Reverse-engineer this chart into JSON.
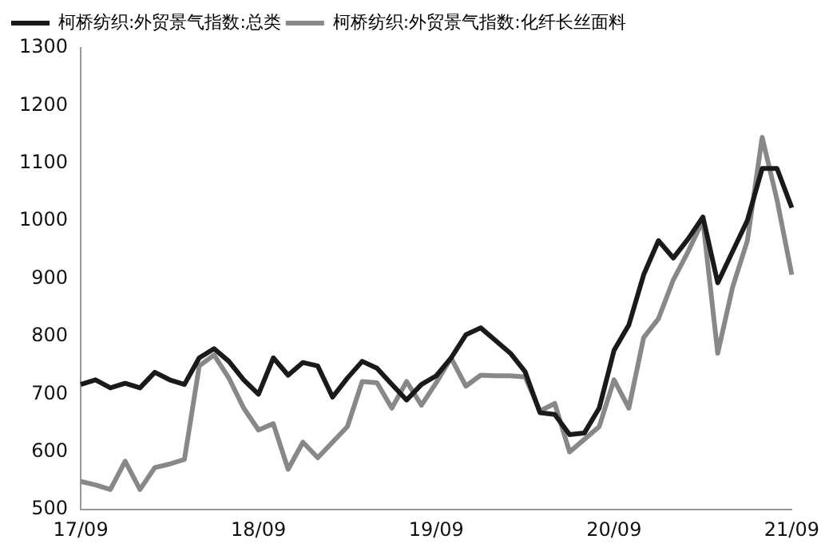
{
  "chart_data": {
    "type": "line",
    "categories": [
      "17/09",
      null,
      null,
      null,
      null,
      null,
      null,
      null,
      null,
      null,
      null,
      null,
      "18/09",
      null,
      null,
      null,
      null,
      null,
      null,
      null,
      null,
      null,
      null,
      null,
      "19/09",
      null,
      null,
      null,
      null,
      null,
      null,
      null,
      null,
      null,
      null,
      null,
      "20/09",
      null,
      null,
      null,
      null,
      null,
      null,
      null,
      null,
      null,
      null,
      null,
      "21/09"
    ],
    "series": [
      {
        "name": "柯桥纺织:外贸景气指数:总类",
        "color": "#1a1a1a",
        "values": [
          717,
          725,
          711,
          719,
          711,
          738,
          725,
          717,
          763,
          779,
          757,
          725,
          700,
          763,
          733,
          755,
          749,
          695,
          728,
          757,
          745,
          717,
          690,
          717,
          732,
          763,
          803,
          815,
          793,
          771,
          739,
          668,
          665,
          630,
          633,
          676,
          776,
          820,
          907,
          966,
          936,
          969,
          1007,
          893,
          947,
          1001,
          1091,
          1091,
          1023
        ]
      },
      {
        "name": "柯桥纺织:外贸景气指数:化纤长丝面料",
        "color": "#888888",
        "values": [
          549,
          543,
          535,
          584,
          535,
          573,
          579,
          587,
          749,
          768,
          728,
          676,
          638,
          649,
          570,
          617,
          590,
          617,
          644,
          722,
          720,
          676,
          722,
          681,
          720,
          763,
          714,
          733,
          732,
          732,
          730,
          671,
          684,
          600,
          622,
          644,
          725,
          676,
          798,
          831,
          898,
          947,
          1001,
          771,
          885,
          966,
          1145,
          1037,
          907
        ]
      }
    ],
    "ylim": [
      500,
      1300
    ],
    "yticks": [
      500,
      600,
      700,
      800,
      900,
      1000,
      1100,
      1200,
      1300
    ],
    "legend": "top left",
    "grid": false,
    "marker": "none",
    "line_style": "solid"
  }
}
